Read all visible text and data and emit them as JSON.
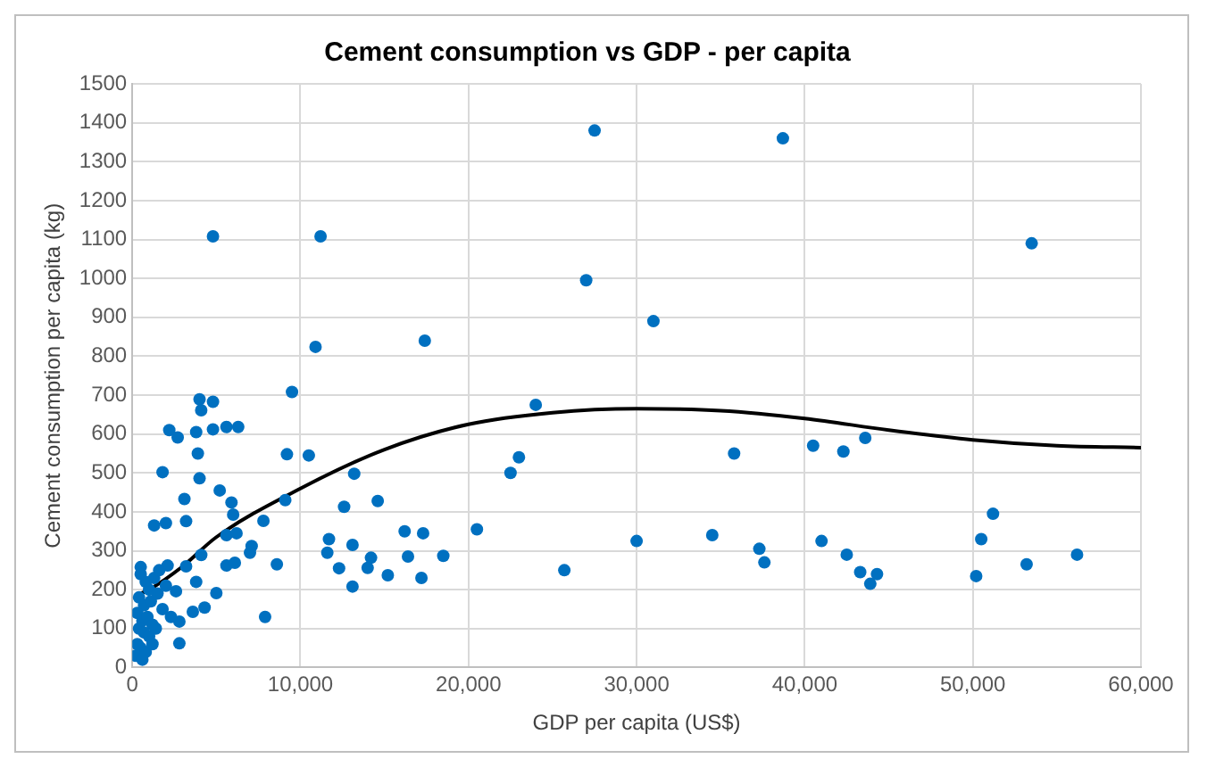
{
  "chart_data": {
    "type": "scatter",
    "title": "Cement consumption vs GDP - per capita",
    "xlabel": "GDP per capita (US$)",
    "ylabel": "Cement consumption per capita (kg)",
    "xlim": [
      0,
      60000
    ],
    "xticks": [
      0,
      {
        "value": 10000,
        "label": "10,000"
      },
      {
        "value": 20000,
        "label": "20,000"
      },
      {
        "value": 30000,
        "label": "30,000"
      },
      {
        "value": 40000,
        "label": "40,000"
      },
      {
        "value": 50000,
        "label": "50,000"
      },
      {
        "value": 60000,
        "label": "60,000"
      }
    ],
    "ylim": [
      0,
      1500
    ],
    "yticks": [
      0,
      100,
      200,
      300,
      400,
      500,
      600,
      700,
      800,
      900,
      1000,
      1100,
      1200,
      1300,
      1400,
      1500
    ],
    "grid": true,
    "legend": false,
    "marker": "circle",
    "series": [
      {
        "type": "scatter",
        "color": "#0070c0",
        "x": [
          27500,
          38700,
          53500,
          27000,
          31000,
          24000,
          23000,
          22500,
          20500,
          25700,
          30000,
          34500,
          35800,
          37300,
          37600,
          40500,
          41000,
          42300,
          42500,
          43300,
          43600,
          43900,
          44300,
          50200,
          50500,
          51200,
          53200,
          56200,
          4800,
          11200,
          4000,
          4800,
          4100,
          2200,
          2700,
          3800,
          4800,
          5600,
          6300,
          3900,
          1800,
          4000,
          5200,
          3100,
          5900,
          6000,
          1300,
          2000,
          3200,
          7800,
          5600,
          6200,
          7100,
          7000,
          4100,
          5600,
          6100,
          8600,
          3200,
          500,
          2100,
          3800,
          5000,
          2600,
          7900,
          4300,
          3600,
          2800,
          2800,
          500,
          800,
          1000,
          1300,
          1600,
          400,
          700,
          1100,
          1500,
          300,
          600,
          900,
          1200,
          1800,
          2000,
          400,
          700,
          1000,
          300,
          500,
          200,
          800,
          1400,
          2300,
          600,
          1200,
          9200,
          10500,
          9500,
          10900,
          17400,
          13200,
          12600,
          14600,
          9100,
          16200,
          17300,
          11700,
          11600,
          13100,
          14200,
          14000,
          12300,
          13100,
          15200,
          16400,
          18500,
          17200
        ],
        "values": [
          1380,
          1360,
          1090,
          995,
          890,
          675,
          540,
          500,
          355,
          250,
          325,
          340,
          550,
          305,
          270,
          570,
          325,
          555,
          290,
          245,
          590,
          215,
          240,
          235,
          330,
          395,
          265,
          290,
          1108,
          1108,
          689,
          683,
          661,
          610,
          591,
          605,
          612,
          618,
          618,
          550,
          502,
          486,
          455,
          433,
          424,
          393,
          365,
          371,
          376,
          377,
          340,
          345,
          312,
          295,
          289,
          262,
          269,
          265,
          260,
          258,
          262,
          220,
          191,
          196,
          130,
          154,
          143,
          118,
          62,
          240,
          220,
          200,
          230,
          250,
          180,
          160,
          170,
          190,
          140,
          120,
          130,
          110,
          150,
          210,
          100,
          90,
          80,
          60,
          50,
          30,
          40,
          100,
          130,
          20,
          60,
          548,
          545,
          708,
          824,
          840,
          498,
          413,
          428,
          430,
          350,
          345,
          330,
          295,
          315,
          282,
          256,
          255,
          208,
          237,
          285,
          287,
          230
        ]
      },
      {
        "type": "line",
        "color": "#000000",
        "marker": "none",
        "x": [
          500,
          1000,
          3000,
          5000,
          10000,
          15000,
          20000,
          25000,
          30000,
          35000,
          40000,
          45000,
          50000,
          55000,
          60000
        ],
        "values": [
          190,
          200,
          260,
          335,
          460,
          560,
          625,
          655,
          665,
          660,
          640,
          610,
          585,
          570,
          565
        ]
      }
    ]
  }
}
